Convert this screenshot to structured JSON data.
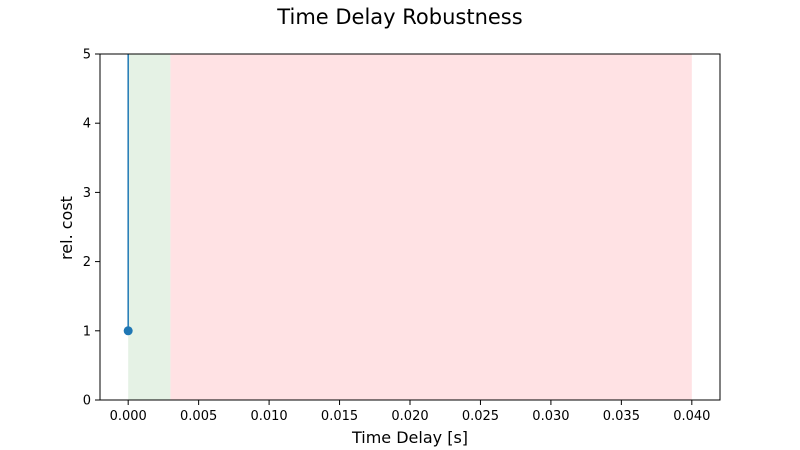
{
  "chart_data": {
    "type": "line",
    "title": "Time Delay Robustness",
    "xlabel": "Time Delay [s]",
    "ylabel": "rel. cost",
    "xlim": [
      -0.002,
      0.042
    ],
    "ylim": [
      0,
      5
    ],
    "x_ticks": [
      0.0,
      0.005,
      0.01,
      0.015,
      0.02,
      0.025,
      0.03,
      0.035,
      0.04
    ],
    "x_tick_labels": [
      "0.000",
      "0.005",
      "0.010",
      "0.015",
      "0.020",
      "0.025",
      "0.030",
      "0.035",
      "0.040"
    ],
    "y_ticks": [
      0,
      1,
      2,
      3,
      4,
      5
    ],
    "y_tick_labels": [
      "0",
      "1",
      "2",
      "3",
      "4",
      "5"
    ],
    "grid": false,
    "regions": [
      {
        "x_start": 0.0,
        "x_end": 0.003,
        "color": "#e5f2e5"
      },
      {
        "x_start": 0.003,
        "x_end": 0.04,
        "color": "#ffe2e4"
      }
    ],
    "series": [
      {
        "color": "#1f77b4",
        "line_x": [
          0.0,
          0.0
        ],
        "line_y": [
          1,
          5
        ],
        "markers": [
          {
            "x": 0.0,
            "y": 1
          }
        ]
      }
    ]
  }
}
